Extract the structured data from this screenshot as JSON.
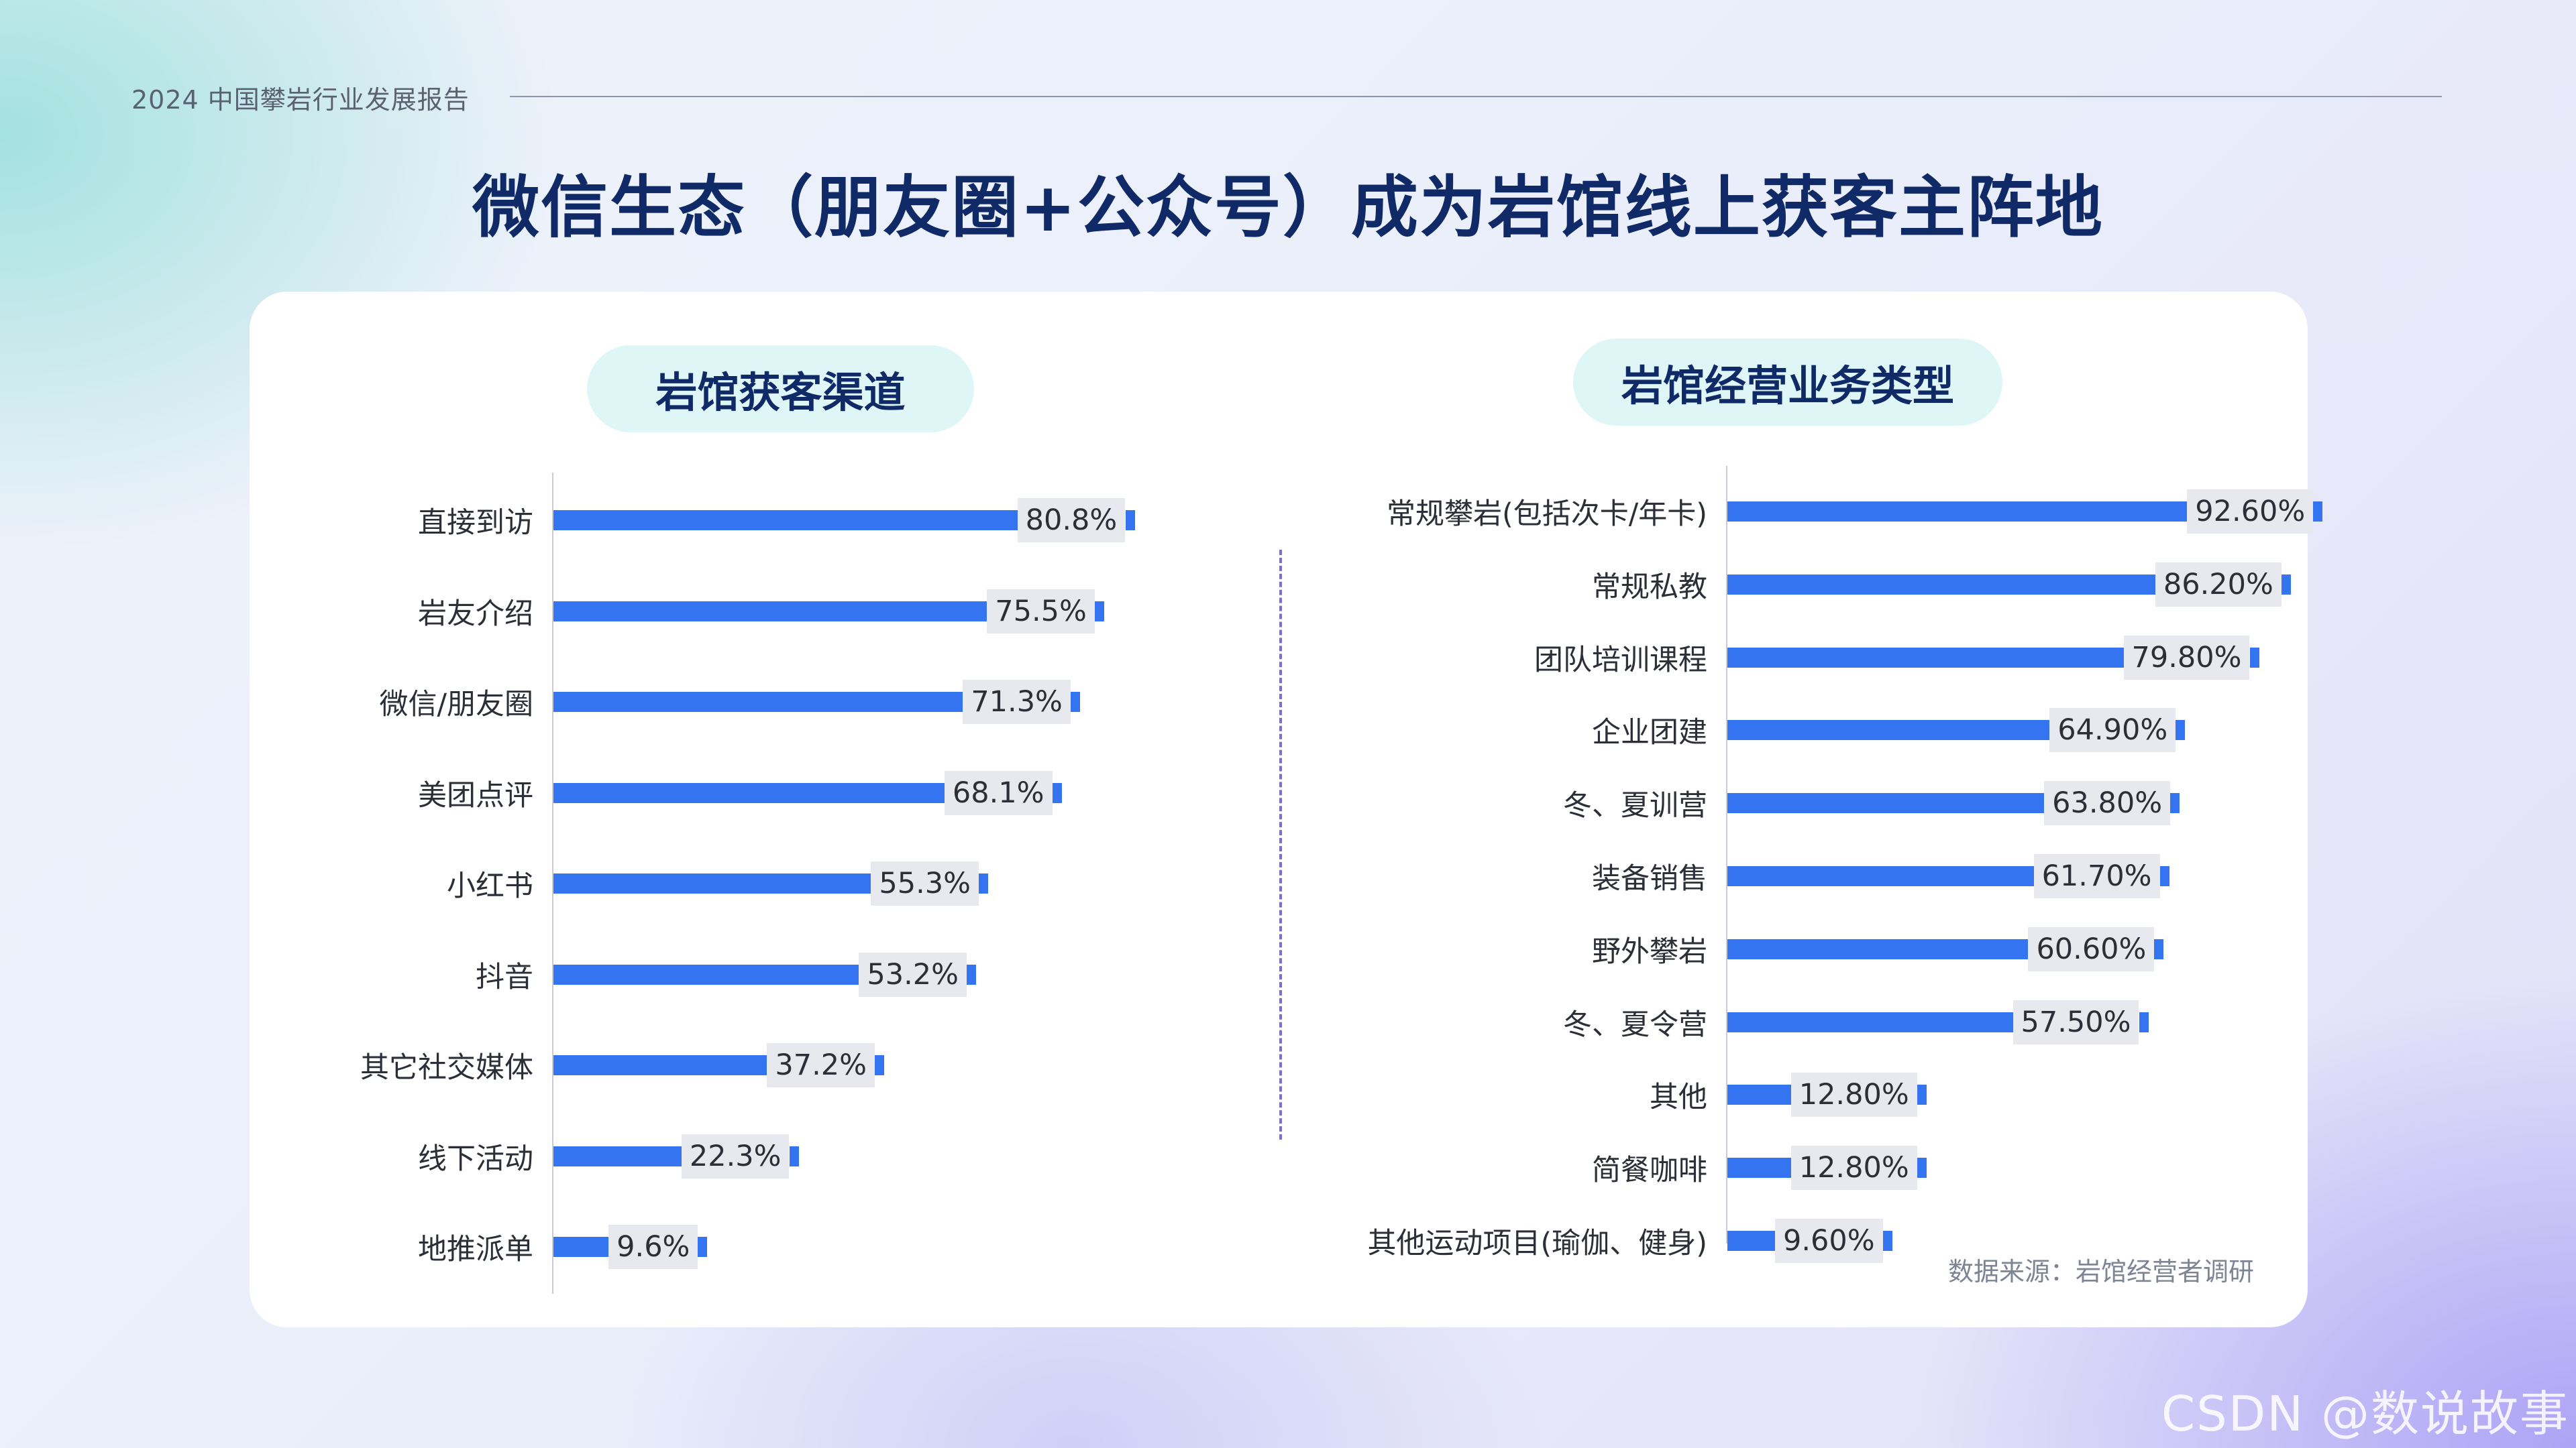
{
  "header": {
    "label": "2024  中国攀岩行业发展报告"
  },
  "title": "微信生态（朋友圈+公众号）成为岩馆线上获客主阵地",
  "source": "数据来源：岩馆经营者调研",
  "watermark": "CSDN @数说故事",
  "colors": {
    "bar": "#3574f0",
    "title": "#0f2a66",
    "pill": "#dff6f7"
  },
  "chart_data": [
    {
      "type": "bar",
      "orientation": "horizontal",
      "title": "岩馆获客渠道",
      "categories": [
        "直接到访",
        "岩友介绍",
        "微信/朋友圈",
        "美团点评",
        "小红书",
        "抖音",
        "其它社交媒体",
        "线下活动",
        "地推派单"
      ],
      "values": [
        80.8,
        75.5,
        71.3,
        68.1,
        55.3,
        53.2,
        37.2,
        22.3,
        9.6
      ],
      "labels": [
        "80.8%",
        "75.5%",
        "71.3%",
        "68.1%",
        "55.3%",
        "53.2%",
        "37.2%",
        "22.3%",
        "9.6%"
      ],
      "unit": "%",
      "xlim": [
        0,
        100
      ]
    },
    {
      "type": "bar",
      "orientation": "horizontal",
      "title": "岩馆经营业务类型",
      "categories": [
        "常规攀岩(包括次卡/年卡)",
        "常规私教",
        "团队培训课程",
        "企业团建",
        "冬、夏训营",
        "装备销售",
        "野外攀岩",
        "冬、夏令营",
        "其他",
        "简餐咖啡",
        "其他运动项目(瑜伽、健身)"
      ],
      "values": [
        92.6,
        86.2,
        79.8,
        64.9,
        63.8,
        61.7,
        60.6,
        57.5,
        12.8,
        12.8,
        9.6
      ],
      "labels": [
        "92.60%",
        "86.20%",
        "79.80%",
        "64.90%",
        "63.80%",
        "61.70%",
        "60.60%",
        "57.50%",
        "12.80%",
        "12.80%",
        "9.60%"
      ],
      "unit": "%",
      "xlim": [
        0,
        100
      ]
    }
  ]
}
